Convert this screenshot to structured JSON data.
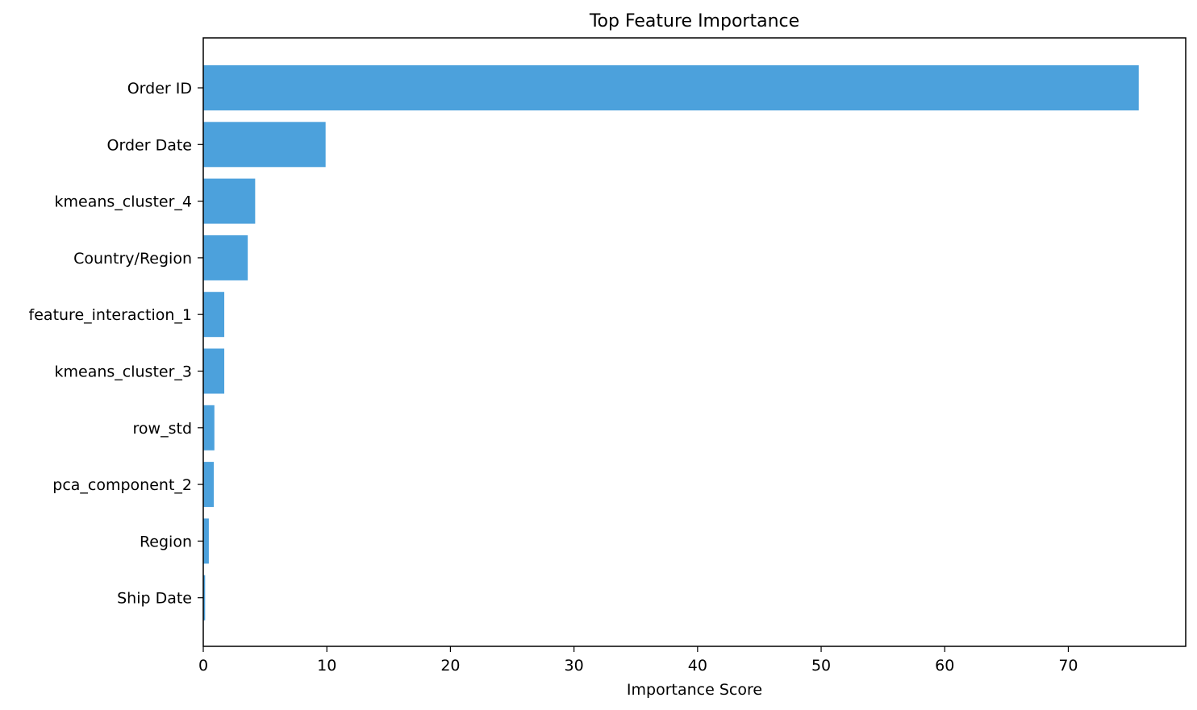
{
  "chart_data": {
    "type": "bar",
    "orientation": "horizontal",
    "title": "Top Feature Importance",
    "xlabel": "Importance Score",
    "ylabel": "",
    "categories": [
      "Order ID",
      "Order Date",
      "kmeans_cluster_4",
      "Country/Region",
      "feature_interaction_1",
      "kmeans_cluster_3",
      "row_std",
      "pca_component_2",
      "Region",
      "Ship Date"
    ],
    "values": [
      75.7,
      9.9,
      4.2,
      3.6,
      1.7,
      1.7,
      0.9,
      0.85,
      0.45,
      0.15
    ],
    "xlim": [
      0,
      79.5
    ],
    "xticks": [
      0,
      10,
      20,
      30,
      40,
      50,
      60,
      70
    ],
    "bar_color": "#4ca1dc",
    "grid": false,
    "legend": "none"
  }
}
